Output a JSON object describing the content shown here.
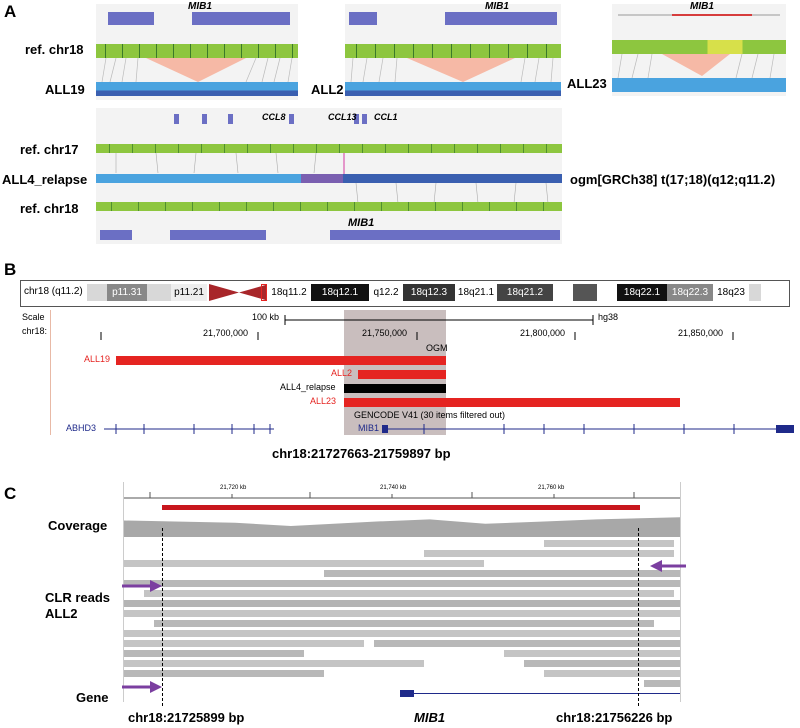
{
  "panels": {
    "a": "A",
    "b": "B",
    "c": "C"
  },
  "panelA": {
    "gene": "MIB1",
    "ref_chr18": "ref. chr18",
    "ref_chr17": "ref. chr17",
    "samples": [
      "ALL19",
      "ALL2",
      "ALL23"
    ],
    "relapse": "ALL4_relapse",
    "genes_chr17": [
      "CCL8",
      "CCL13",
      "CCL1"
    ],
    "translocation": "ogm[GRCh38] t(17;18)(q12;q11.2)"
  },
  "panelB": {
    "chrom_label": "chr18 (q11.2)",
    "bands": [
      "p11.31",
      "p11.21",
      "18q11.2",
      "18q12.1",
      "q12.2",
      "18q12.3",
      "18q21.1",
      "18q21.2",
      "18q22.1",
      "18q22.3",
      "18q23"
    ],
    "scale_label": "Scale",
    "scale_value": "100 kb",
    "assembly": "hg38",
    "chr_label": "chr18:",
    "ticks": [
      "21,700,000",
      "21,750,000",
      "21,800,000",
      "21,850,000"
    ],
    "track": "OGM",
    "samples": [
      "ALL19",
      "ALL2",
      "ALL4_relapse",
      "ALL23"
    ],
    "gencode": "GENCODE V41 (30 items filtered out)",
    "genes": [
      "ABHD3",
      "MIB1"
    ],
    "region": "chr18:21727663-21759897 bp"
  },
  "panelC": {
    "ticks": [
      "21,720 kb",
      "21,740 kb",
      "21,760 kb"
    ],
    "coverage": "Coverage",
    "reads": "CLR reads",
    "sample": "ALL2",
    "gene_track": "Gene",
    "left_bp": "chr18:21725899 bp",
    "right_bp": "chr18:21756226 bp",
    "gene": "MIB1"
  },
  "colors": {
    "green": "#8dc63f",
    "blue": "#4aa3df",
    "darkblue": "#3a5fb0",
    "genebox": "#6b6fc4",
    "red": "#e52421",
    "purple": "#7b3fa0",
    "shade": "#c9bebe"
  }
}
